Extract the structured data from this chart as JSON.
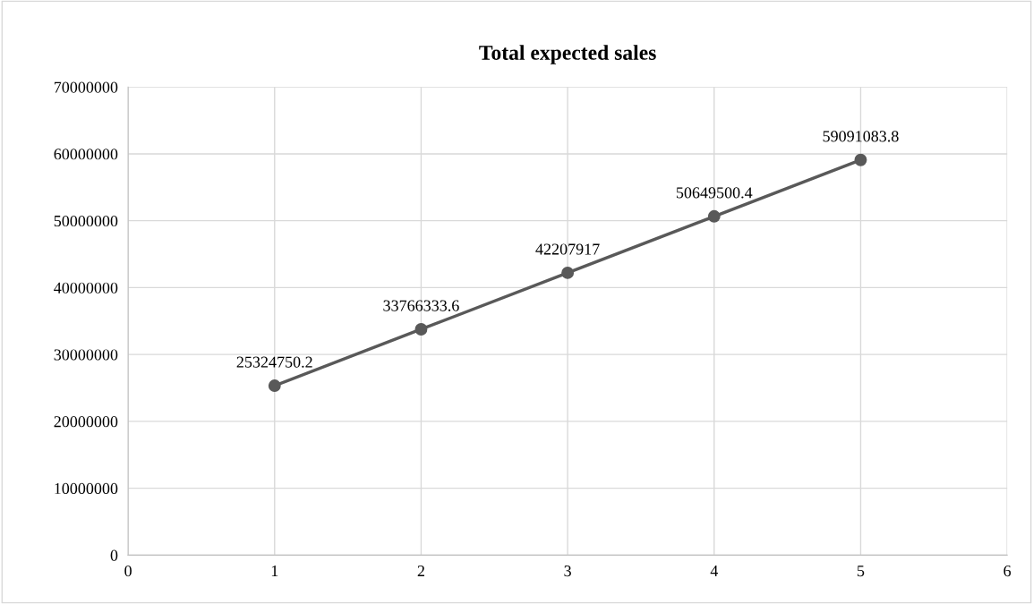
{
  "chart_data": {
    "type": "line",
    "title": "Total expected sales",
    "x": [
      1,
      2,
      3,
      4,
      5
    ],
    "series": [
      {
        "color": "#595959",
        "values": [
          25324750.2,
          33766333.6,
          42207917,
          50649500.4,
          59091083.8
        ]
      }
    ],
    "data_labels": true,
    "xlim": [
      0,
      6
    ],
    "xticks": [
      0,
      1,
      2,
      3,
      4,
      5,
      6
    ],
    "ylim": [
      0,
      70000000
    ],
    "yticks": [
      0,
      10000000,
      20000000,
      30000000,
      40000000,
      50000000,
      60000000,
      70000000
    ],
    "grid": true,
    "marker": "circle",
    "line_style": "solid"
  }
}
